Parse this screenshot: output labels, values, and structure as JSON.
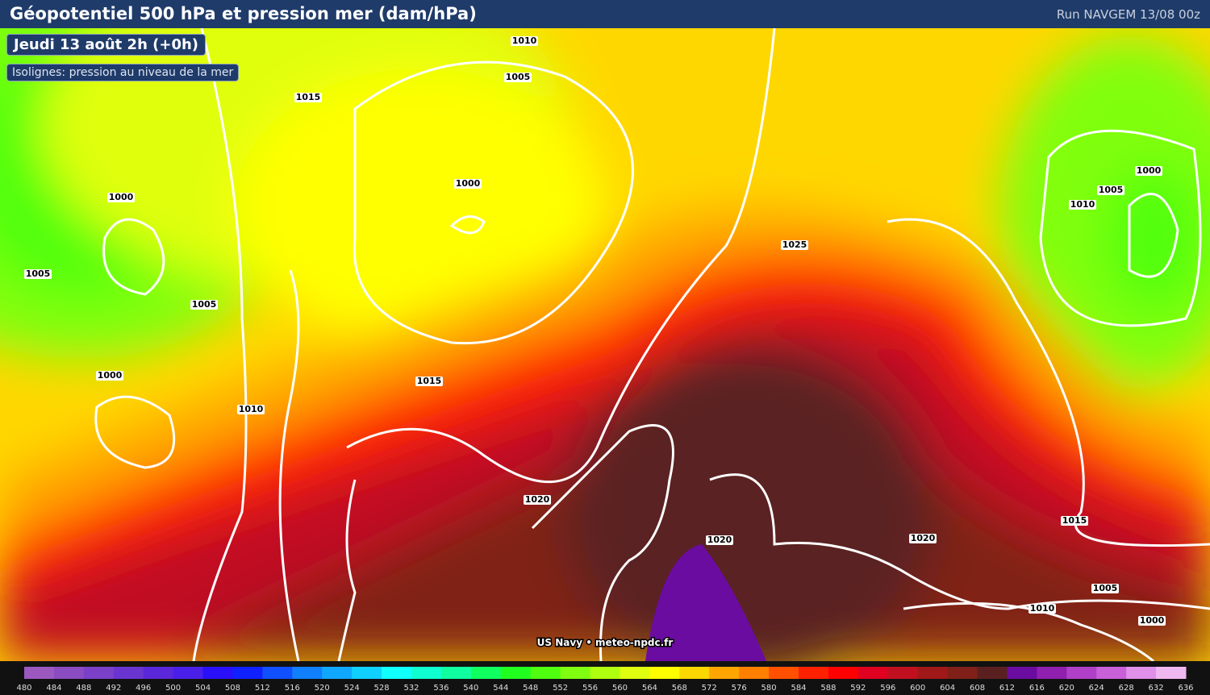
{
  "header": {
    "title": "Géopotentiel 500 hPa et pression mer (dam/hPa)",
    "run": "Run NAVGEM 13/08 00z"
  },
  "badges": {
    "date": "Jeudi 13 août 2h (+0h)",
    "note": "Isolignes: pression au niveau de la mer"
  },
  "isobar_labels": [
    "1010",
    "1005",
    "1015",
    "1000",
    "1000",
    "1005",
    "1005",
    "1000",
    "1015",
    "1010",
    "1020",
    "1020",
    "1025",
    "1000",
    "1005",
    "1010",
    "1015",
    "1020",
    "1005",
    "1010",
    "1000"
  ],
  "credit": "US Navy • meteo-npdc.fr",
  "legend": {
    "labels": [
      480,
      484,
      488,
      492,
      496,
      500,
      504,
      508,
      512,
      516,
      520,
      524,
      528,
      532,
      536,
      540,
      544,
      548,
      552,
      556,
      560,
      564,
      568,
      572,
      576,
      580,
      584,
      588,
      592,
      596,
      600,
      604,
      608,
      612,
      616,
      620,
      624,
      628,
      632,
      636
    ],
    "colors": [
      "#9b59c0",
      "#8a4cc0",
      "#7a40c8",
      "#6a34d0",
      "#5a28d8",
      "#4a20e8",
      "#2a10f8",
      "#1020ff",
      "#1050ff",
      "#1080ff",
      "#10a8ff",
      "#10d0ff",
      "#10ffff",
      "#10ffd0",
      "#10ffa0",
      "#10ff60",
      "#20ff20",
      "#50ff10",
      "#80ff10",
      "#b0ff10",
      "#e0ff10",
      "#ffff00",
      "#ffd700",
      "#ffa500",
      "#ff7f00",
      "#ff5000",
      "#ff2000",
      "#ff0000",
      "#e00020",
      "#c01020",
      "#a01818",
      "#802018",
      "#5a2020",
      "#6a0ca0",
      "#9020b0",
      "#b040c8",
      "#c860d8",
      "#e090e8",
      "#f0b8f0"
    ]
  }
}
